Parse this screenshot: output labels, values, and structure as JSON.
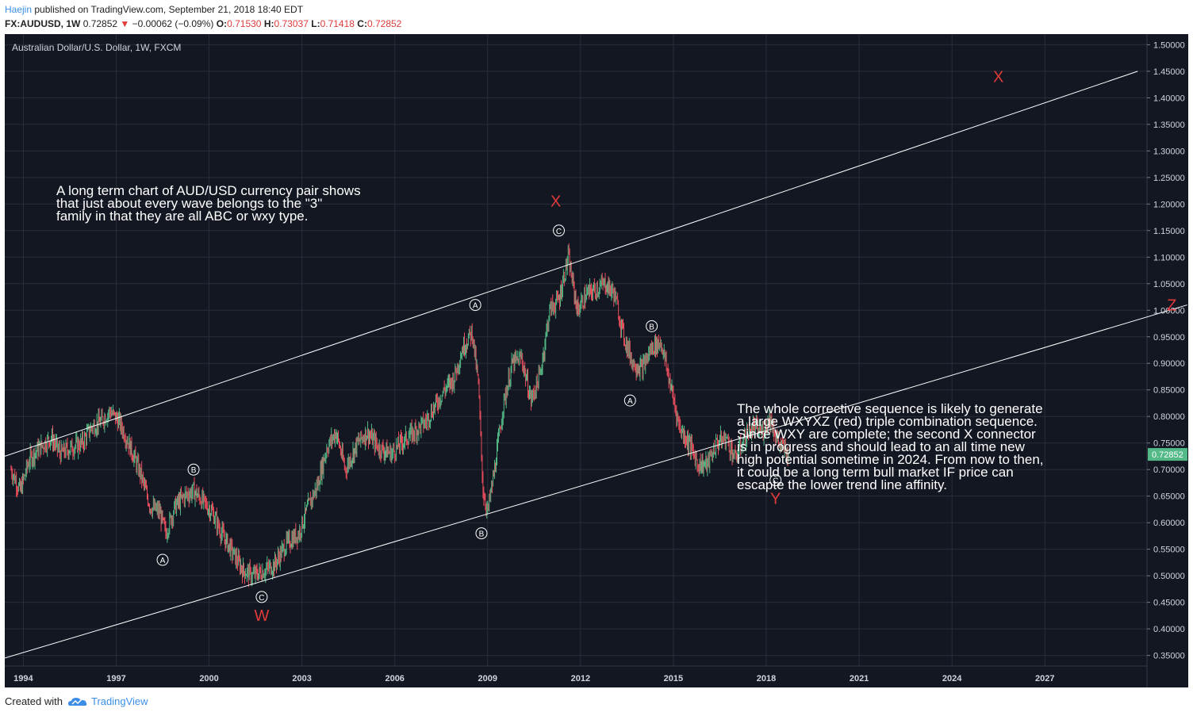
{
  "header": {
    "author": "Haejin",
    "published": "published on TradingView.com, September 21, 2018 18:40 EDT",
    "symbol": "FX:AUDUSD, 1W",
    "price": "0.72852",
    "change_arrow": "▼",
    "change": "−0.00062 (−0.09%)",
    "open_label": "O:",
    "open": "0.71530",
    "high_label": "H:",
    "high": "0.73037",
    "low_label": "L:",
    "low": "0.71418",
    "close_label": "C:",
    "close": "0.72852"
  },
  "footer": {
    "created_with": "Created with",
    "brand": "TradingView"
  },
  "colors": {
    "background": "#131722",
    "grid": "#2a2e39",
    "up": "#53b987",
    "down": "#eb4d5c",
    "red_label": "#e03a3a",
    "price_tag": "#53b987"
  },
  "chart_data": {
    "type": "line",
    "title": "Australian Dollar/U.S. Dollar, 1W, FXCM",
    "xlabel": "",
    "ylabel": "",
    "xlim": [
      1993.4,
      2030.3
    ],
    "ylim": [
      0.33,
      1.52
    ],
    "x_ticks": [
      "1994",
      "1997",
      "2000",
      "2003",
      "2006",
      "2009",
      "2012",
      "2015",
      "2018",
      "2021",
      "2024",
      "2027"
    ],
    "y_ticks": [
      "1.50000",
      "1.45000",
      "1.40000",
      "1.35000",
      "1.30000",
      "1.25000",
      "1.20000",
      "1.15000",
      "1.10000",
      "1.05000",
      "1.00000",
      "0.95000",
      "0.90000",
      "0.85000",
      "0.80000",
      "0.75000",
      "0.70000",
      "0.65000",
      "0.60000",
      "0.55000",
      "0.50000",
      "0.45000",
      "0.40000",
      "0.35000"
    ],
    "last_price_label": "0.72852",
    "series": [
      {
        "x": [
          1993.6,
          1993.9,
          1994.2,
          1994.5,
          1994.9,
          1995.2,
          1995.5,
          1995.9,
          1996.2,
          1996.5,
          1996.8,
          1997.1,
          1997.4,
          1997.8,
          1998.1,
          1998.4,
          1998.6,
          1998.9,
          1999.2,
          1999.5,
          1999.8,
          2000.1,
          2000.4,
          2000.8,
          2001.1,
          2001.4,
          2001.8,
          2002.1,
          2002.5,
          2002.9,
          2003.2,
          2003.5,
          2003.8,
          2004.1,
          2004.4,
          2004.8,
          2005.1,
          2005.5,
          2005.9,
          2006.2,
          2006.6,
          2007.0,
          2007.3,
          2007.6,
          2007.9,
          2008.2,
          2008.5,
          2008.7,
          2008.85,
          2009.0,
          2009.2,
          2009.5,
          2009.8,
          2010.1,
          2010.4,
          2010.7,
          2011.0,
          2011.3,
          2011.6,
          2011.9,
          2012.2,
          2012.5,
          2012.8,
          2013.1,
          2013.4,
          2013.7,
          2014.0,
          2014.3,
          2014.6,
          2014.9,
          2015.2,
          2015.5,
          2015.8,
          2016.1,
          2016.4,
          2016.7,
          2017.0,
          2017.3,
          2017.6,
          2017.9,
          2018.1,
          2018.4,
          2018.72
        ],
        "y": [
          0.7,
          0.66,
          0.72,
          0.74,
          0.76,
          0.73,
          0.74,
          0.75,
          0.78,
          0.79,
          0.81,
          0.79,
          0.75,
          0.69,
          0.63,
          0.62,
          0.58,
          0.63,
          0.65,
          0.66,
          0.64,
          0.62,
          0.58,
          0.54,
          0.51,
          0.5,
          0.51,
          0.52,
          0.56,
          0.58,
          0.63,
          0.67,
          0.74,
          0.77,
          0.7,
          0.75,
          0.77,
          0.74,
          0.73,
          0.75,
          0.77,
          0.79,
          0.82,
          0.85,
          0.87,
          0.93,
          0.96,
          0.86,
          0.66,
          0.62,
          0.69,
          0.82,
          0.9,
          0.91,
          0.83,
          0.88,
          1.0,
          1.02,
          1.1,
          1.0,
          1.03,
          1.04,
          1.05,
          1.03,
          0.95,
          0.9,
          0.89,
          0.93,
          0.94,
          0.86,
          0.78,
          0.75,
          0.71,
          0.71,
          0.75,
          0.76,
          0.72,
          0.76,
          0.78,
          0.77,
          0.8,
          0.75,
          0.72852
        ]
      }
    ],
    "annotations": {
      "channel_note": [
        "A long term chart of AUD/USD currency pair shows",
        "that just about every wave belongs to the \"3\"",
        "family in that they are all ABC or wxy type."
      ],
      "forecast_note": [
        "The whole corrective sequence is likely to generate",
        "a large WXYXZ (red) triple combination sequence.",
        "Since WXY are complete; the second X connector",
        "is in progress and should lead to an all time new",
        "high potential sometime in 2024. From now to then,",
        "it could be a long term bull market IF price can",
        "escapte the lower trend line affinity."
      ],
      "white_labels": [
        {
          "text": "A",
          "x": 1998.5,
          "y": 0.53
        },
        {
          "text": "B",
          "x": 1999.5,
          "y": 0.7
        },
        {
          "text": "C",
          "x": 2001.7,
          "y": 0.46
        },
        {
          "text": "A",
          "x": 2008.6,
          "y": 1.01
        },
        {
          "text": "B",
          "x": 2008.8,
          "y": 0.58
        },
        {
          "text": "C",
          "x": 2011.3,
          "y": 1.15
        },
        {
          "text": "A",
          "x": 2013.6,
          "y": 0.83
        },
        {
          "text": "B",
          "x": 2014.3,
          "y": 0.97
        },
        {
          "text": "C",
          "x": 2018.3,
          "y": 0.68
        }
      ],
      "red_labels": [
        {
          "text": "W",
          "x": 2001.7,
          "y": 0.415
        },
        {
          "text": "X",
          "x": 2011.2,
          "y": 1.195
        },
        {
          "text": "Y",
          "x": 2018.3,
          "y": 0.635
        },
        {
          "text": "X",
          "x": 2025.5,
          "y": 1.43
        },
        {
          "text": "Z",
          "x": 2031.1,
          "y": 1.0
        }
      ],
      "trend_lines": [
        {
          "x1": 1993.4,
          "y1": 0.725,
          "x2": 2030.0,
          "y2": 1.45
        },
        {
          "x1": 1993.4,
          "y1": 0.345,
          "x2": 2031.6,
          "y2": 1.01
        }
      ]
    }
  }
}
